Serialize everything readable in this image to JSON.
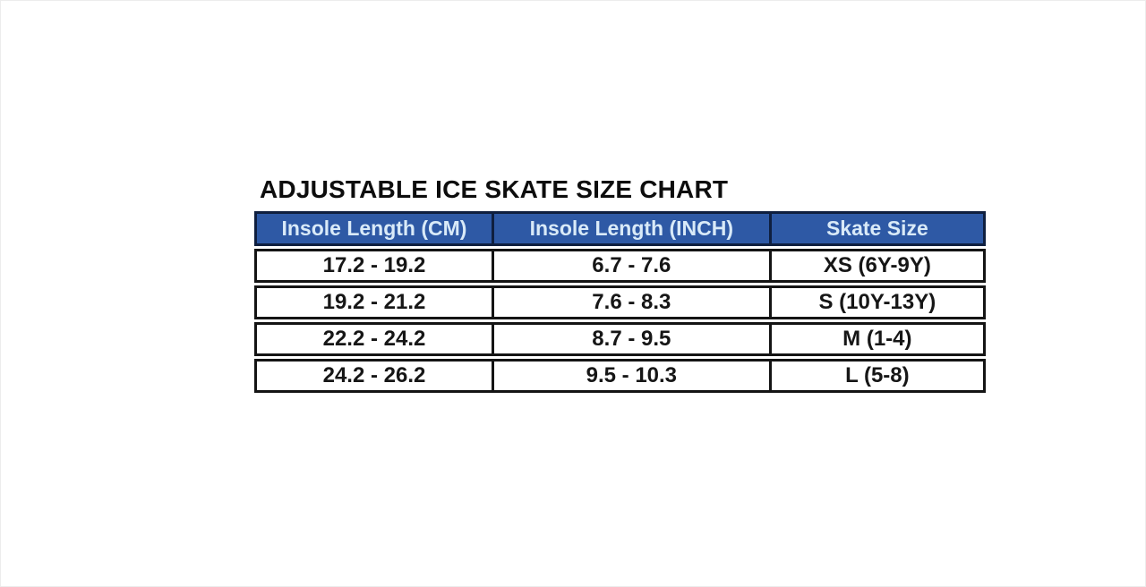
{
  "title": "ADJUSTABLE ICE SKATE SIZE CHART",
  "table": {
    "headers": {
      "cm": "Insole Length (CM)",
      "inch": "Insole Length (INCH)",
      "size": "Skate Size"
    },
    "rows": [
      [
        "17.2 - 19.2",
        "6.7 - 7.6",
        "XS (6Y-9Y)"
      ],
      [
        "19.2 - 21.2",
        "7.6 - 8.3",
        "S (10Y-13Y)"
      ],
      [
        "22.2 - 24.2",
        "8.7 - 9.5",
        "M (1-4)"
      ],
      [
        "24.2 - 26.2",
        "9.5 - 10.3",
        "L (5-8)"
      ]
    ],
    "colors": {
      "header_bg": "#2e59a5",
      "header_text": "#d9eaf8",
      "header_border": "#0f1f3f",
      "body_border": "#141414",
      "body_text": "#161616"
    }
  },
  "chart_data": {
    "type": "table",
    "title": "ADJUSTABLE ICE SKATE SIZE CHART",
    "columns": [
      "Insole Length (CM)",
      "Insole Length (INCH)",
      "Skate Size"
    ],
    "rows": [
      {
        "insole_cm": "17.2 - 19.2",
        "insole_inch": "6.7 - 7.6",
        "skate_size": "XS (6Y-9Y)"
      },
      {
        "insole_cm": "19.2 - 21.2",
        "insole_inch": "7.6 - 8.3",
        "skate_size": "S (10Y-13Y)"
      },
      {
        "insole_cm": "22.2 - 24.2",
        "insole_inch": "8.7 - 9.5",
        "skate_size": "M (1-4)"
      },
      {
        "insole_cm": "24.2 - 26.2",
        "insole_inch": "9.5 - 10.3",
        "skate_size": "L (5-8)"
      }
    ],
    "layout": {
      "header_style": "blue-filled",
      "grid": "thick-black-borders",
      "row_gap": true
    }
  }
}
